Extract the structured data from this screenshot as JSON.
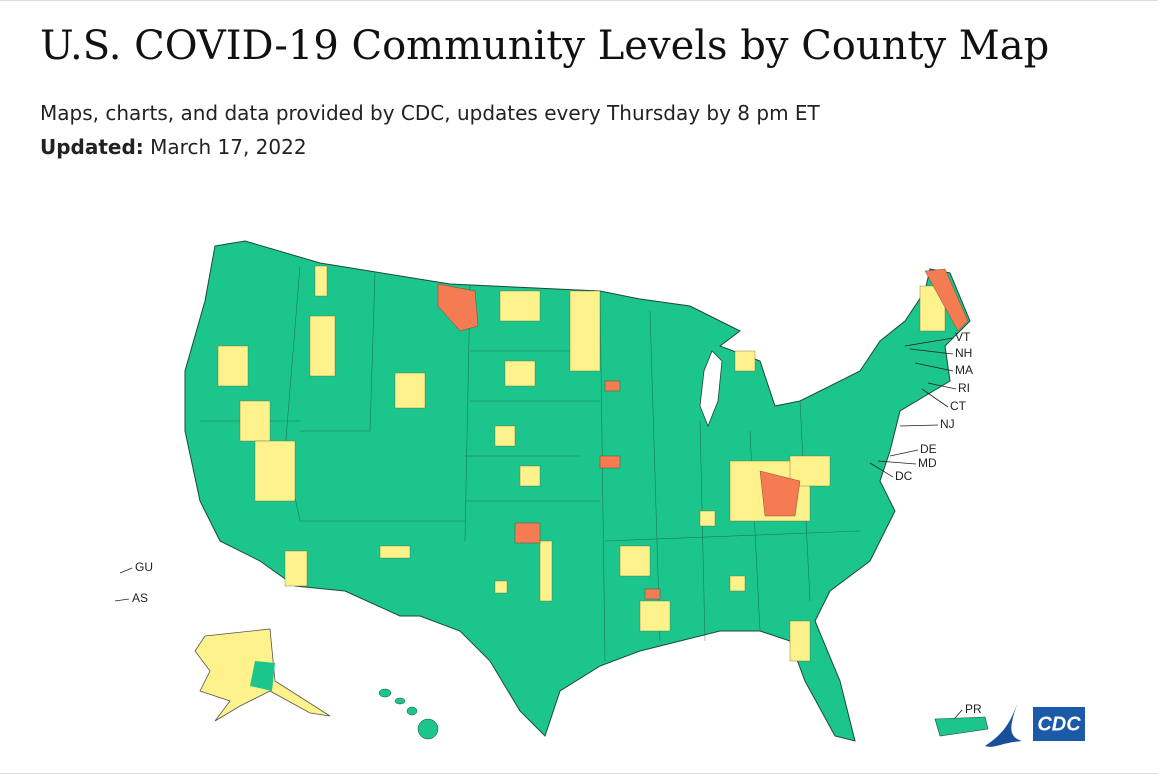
{
  "header": {
    "title": "U.S. COVID-19 Community Levels by County Map",
    "subtitle": "Maps, charts, and data provided by CDC, updates every Thursday by 8 pm ET",
    "updated_label": "Updated:",
    "updated_date": "March 17, 2022"
  },
  "map": {
    "state_labels": [
      "VT",
      "NH",
      "MA",
      "RI",
      "CT",
      "NJ",
      "DE",
      "MD",
      "DC"
    ],
    "territories": [
      "GU",
      "AS",
      "PR"
    ],
    "logo": "CDC"
  }
}
